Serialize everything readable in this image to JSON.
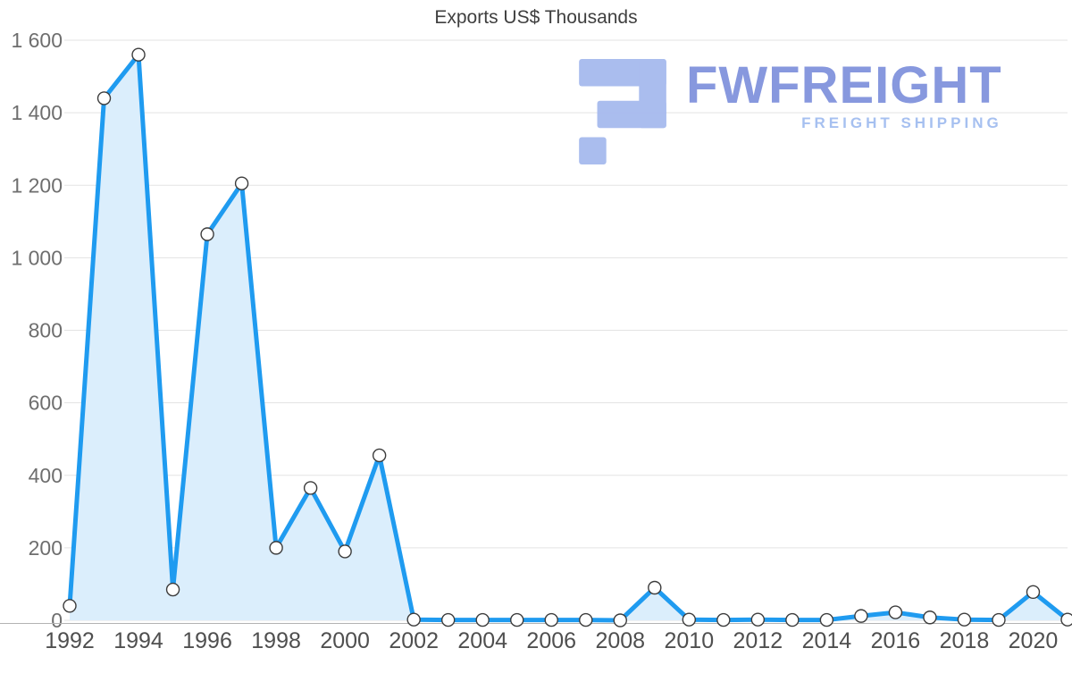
{
  "title": "Exports US$ Thousands",
  "logo": {
    "name": "FWFREIGHT",
    "tagline": "FREIGHT SHIPPING"
  },
  "colors": {
    "line": "#1f9bf0",
    "area": "#dbeefc",
    "marker_fill": "#ffffff",
    "marker_stroke": "#3c3c3c",
    "grid": "#e3e3e3",
    "axis": "#b3b3b3",
    "ytick_label": "#6e6e6e",
    "xtick_label": "#4f4f4f",
    "title": "#3f3f3f",
    "logo_icon": "#a6baee",
    "logo_text": "#8193dd",
    "logo_tagline": "#a2bdf0"
  },
  "chart_data": {
    "type": "area",
    "title": "Exports US$ Thousands",
    "xlabel": "",
    "ylabel": "",
    "x": [
      1992,
      1993,
      1994,
      1995,
      1996,
      1997,
      1998,
      1999,
      2000,
      2001,
      2002,
      2003,
      2004,
      2005,
      2006,
      2007,
      2008,
      2009,
      2010,
      2011,
      2012,
      2013,
      2014,
      2015,
      2016,
      2017,
      2018,
      2019,
      2020,
      2021
    ],
    "values": [
      40,
      1440,
      1560,
      85,
      1065,
      1205,
      200,
      365,
      190,
      455,
      2,
      1,
      1,
      1,
      1,
      1,
      0,
      90,
      2,
      1,
      2,
      1,
      1,
      12,
      22,
      8,
      2,
      1,
      78,
      2
    ],
    "xlim": [
      1992,
      2021
    ],
    "ylim": [
      0,
      1600
    ],
    "ytick_step": 200,
    "ytick_labels": [
      "0",
      "200",
      "400",
      "600",
      "800",
      "1 000",
      "1 200",
      "1 400",
      "1 600"
    ],
    "xtick_labels": [
      "1992",
      "1994",
      "1996",
      "1998",
      "2000",
      "2002",
      "2004",
      "2006",
      "2008",
      "2010",
      "2012",
      "2014",
      "2016",
      "2018",
      "2020"
    ],
    "grid": true,
    "legend": false,
    "marker": "circle"
  }
}
